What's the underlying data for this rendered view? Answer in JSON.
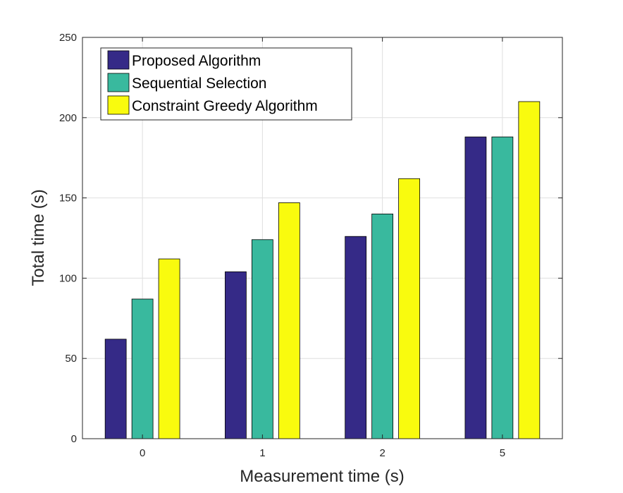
{
  "chart_data": {
    "type": "bar",
    "title": "",
    "xlabel": "Measurement time (s)",
    "ylabel": "Total time (s)",
    "categories": [
      "0",
      "1",
      "2",
      "5"
    ],
    "ylim": [
      0,
      250
    ],
    "yticks": [
      "0",
      "50",
      "100",
      "150",
      "200",
      "250"
    ],
    "grid": true,
    "legend_position": "top-left",
    "series": [
      {
        "name": "Proposed Algorithm",
        "color": "#352A87",
        "values": [
          62,
          104,
          126,
          188
        ]
      },
      {
        "name": "Sequential Selection",
        "color": "#39B99E",
        "values": [
          87,
          124,
          140,
          188
        ]
      },
      {
        "name": "Constraint Greedy Algorithm",
        "color": "#F9FB0E",
        "values": [
          112,
          147,
          162,
          210
        ]
      }
    ]
  }
}
